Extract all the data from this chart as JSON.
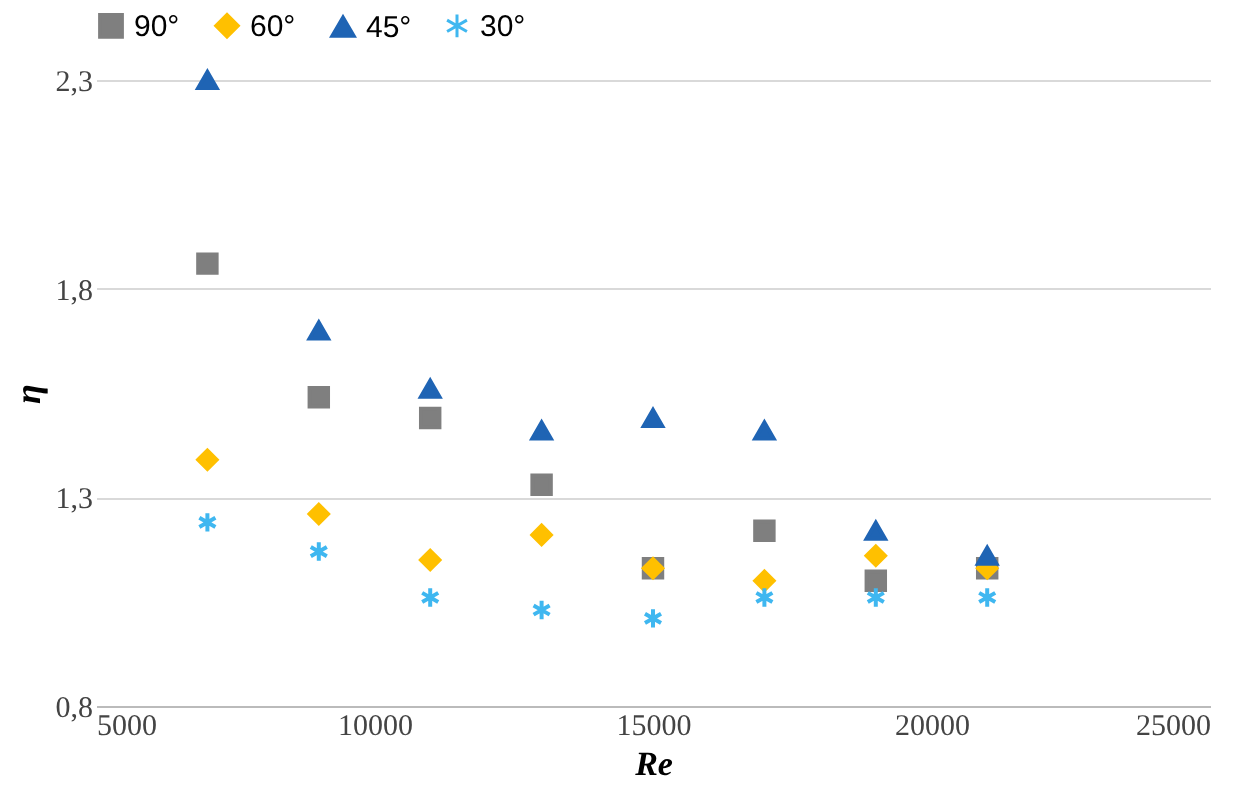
{
  "chart_data": {
    "type": "scatter",
    "xlabel": "Re",
    "ylabel": "η",
    "x": [
      7000,
      9000,
      11000,
      13000,
      15000,
      17000,
      19000,
      21000
    ],
    "series": [
      {
        "name": "90°",
        "color": "#7f7f7f",
        "marker": "square",
        "values": [
          1.86,
          1.54,
          1.49,
          1.33,
          1.13,
          1.22,
          1.1,
          1.13
        ]
      },
      {
        "name": "60°",
        "color": "#ffc000",
        "marker": "diamond",
        "values": [
          1.39,
          1.26,
          1.15,
          1.21,
          1.13,
          1.1,
          1.16,
          1.13
        ]
      },
      {
        "name": "45°",
        "color": "#1f64b4",
        "marker": "triangle",
        "values": [
          2.3,
          1.7,
          1.56,
          1.46,
          1.49,
          1.46,
          1.22,
          1.16
        ]
      },
      {
        "name": "30°",
        "color": "#3fb7f0",
        "marker": "cross",
        "values": [
          1.24,
          1.17,
          1.06,
          1.03,
          1.01,
          1.06,
          1.06,
          1.06
        ]
      }
    ],
    "xlim": [
      5000,
      25000
    ],
    "xticks": [
      5000,
      10000,
      15000,
      20000,
      25000
    ],
    "ylim": [
      0.8,
      2.3
    ],
    "yticks": [
      {
        "value": 0.8,
        "label": "0,8"
      },
      {
        "value": 1.3,
        "label": "1,3"
      },
      {
        "value": 1.8,
        "label": "1,8"
      },
      {
        "value": 2.3,
        "label": "2,3"
      }
    ],
    "grid": "y",
    "legend": "top"
  }
}
